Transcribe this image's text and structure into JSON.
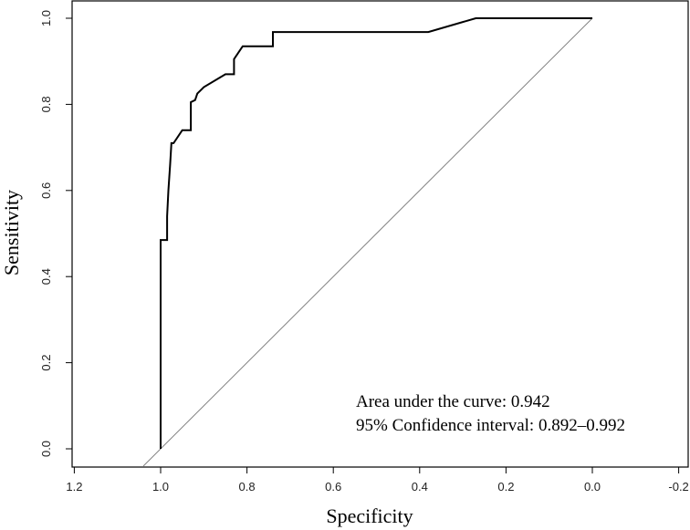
{
  "chart_data": {
    "type": "line",
    "title": "",
    "xlabel": "Specificity",
    "ylabel": "Sensitivity",
    "xlim": [
      1.2,
      -0.2
    ],
    "ylim": [
      0.0,
      1.0
    ],
    "x_reversed": true,
    "grid": false,
    "legend": "none",
    "x_ticks": [
      {
        "value": 1.2,
        "label": "1.2"
      },
      {
        "value": 1.0,
        "label": "1.0"
      },
      {
        "value": 0.8,
        "label": "0.8"
      },
      {
        "value": 0.6,
        "label": "0.6"
      },
      {
        "value": 0.4,
        "label": "0.4"
      },
      {
        "value": 0.2,
        "label": "0.2"
      },
      {
        "value": 0.0,
        "label": "0.0"
      },
      {
        "value": -0.2,
        "label": "-0.2"
      }
    ],
    "y_ticks": [
      {
        "value": 0.0,
        "label": "0.0"
      },
      {
        "value": 0.2,
        "label": "0.2"
      },
      {
        "value": 0.4,
        "label": "0.4"
      },
      {
        "value": 0.6,
        "label": "0.6"
      },
      {
        "value": 0.8,
        "label": "0.8"
      },
      {
        "value": 1.0,
        "label": "1.0"
      }
    ],
    "series": [
      {
        "color": "#000000",
        "x": [
          1.0,
          1.0,
          0.985,
          0.985,
          0.982,
          0.978,
          0.975,
          0.97,
          0.95,
          0.94,
          0.93,
          0.93,
          0.92,
          0.915,
          0.905,
          0.9,
          0.85,
          0.83,
          0.83,
          0.82,
          0.81,
          0.74,
          0.74,
          0.38,
          0.27,
          0.0
        ],
        "y": [
          0.0,
          0.485,
          0.485,
          0.54,
          0.6,
          0.66,
          0.71,
          0.71,
          0.74,
          0.74,
          0.74,
          0.805,
          0.81,
          0.825,
          0.835,
          0.84,
          0.87,
          0.87,
          0.905,
          0.92,
          0.935,
          0.935,
          0.968,
          0.968,
          1.0,
          1.0
        ]
      }
    ],
    "reference_line": {
      "color": "#808080",
      "x": [
        1.04,
        0.0
      ],
      "y": [
        -0.04,
        1.0
      ]
    },
    "annotations": [
      "Area under the curve: 0.942",
      "95% Confidence interval: 0.892–0.992"
    ]
  }
}
